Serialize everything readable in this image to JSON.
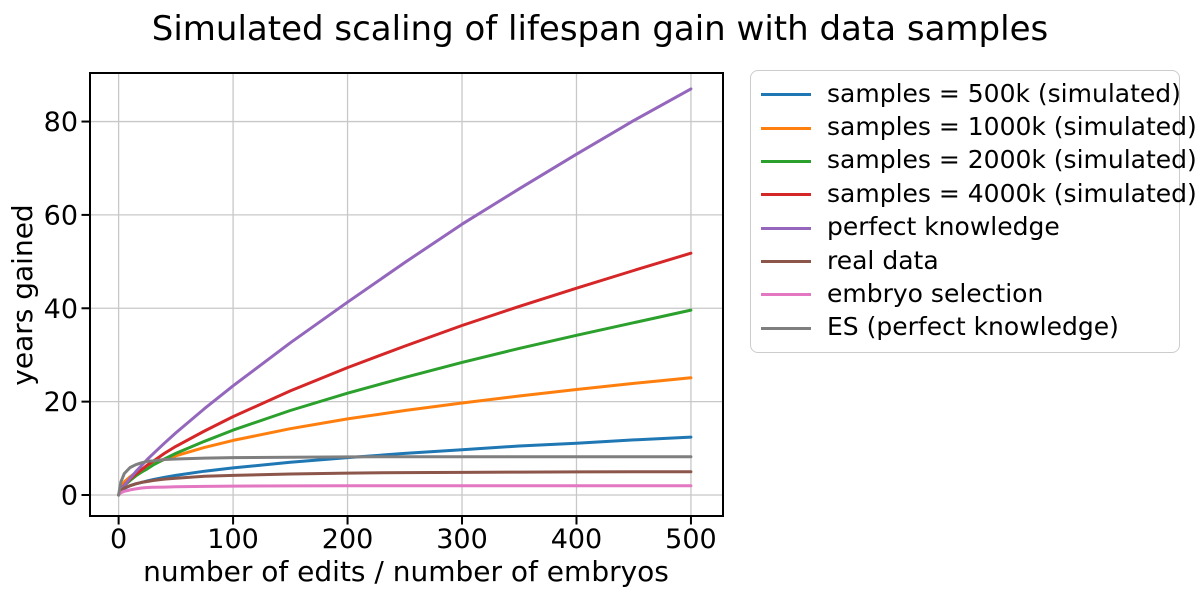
{
  "chart_data": {
    "type": "line",
    "title": "Simulated scaling of lifespan gain with data samples",
    "xlabel": "number of edits / number of embryos",
    "ylabel": "years gained",
    "xlim": [
      -25,
      528
    ],
    "ylim": [
      -4.5,
      90.4
    ],
    "xticks": [
      0,
      100,
      200,
      300,
      400,
      500
    ],
    "yticks": [
      0,
      20,
      40,
      60,
      80
    ],
    "grid": true,
    "grid_color": "#c8c8c8",
    "spine_color": "#000000",
    "legend_position": "outside-right-top",
    "x": [
      0,
      2,
      5,
      10,
      15,
      20,
      25,
      30,
      40,
      50,
      75,
      100,
      150,
      200,
      250,
      300,
      350,
      400,
      450,
      500
    ],
    "series": [
      {
        "name": "samples = 500k (simulated)",
        "color": "#1f77b4",
        "values": [
          0,
          0.9,
          1.4,
          2.0,
          2.4,
          2.7,
          3.0,
          3.3,
          3.8,
          4.2,
          5.1,
          5.8,
          7.0,
          8.0,
          8.9,
          9.7,
          10.5,
          11.1,
          11.8,
          12.4
        ]
      },
      {
        "name": "samples = 1000k (simulated)",
        "color": "#ff7f0e",
        "values": [
          0,
          1.8,
          2.8,
          3.9,
          4.8,
          5.5,
          6.1,
          6.6,
          7.6,
          8.4,
          10.2,
          11.7,
          14.2,
          16.3,
          18.1,
          19.7,
          21.2,
          22.6,
          23.9,
          25.1
        ]
      },
      {
        "name": "samples = 2000k (simulated)",
        "color": "#2ca02c",
        "values": [
          0,
          1.1,
          2.0,
          3.1,
          4.1,
          4.9,
          5.6,
          6.4,
          7.7,
          8.9,
          11.5,
          13.9,
          18.1,
          21.8,
          25.2,
          28.4,
          31.4,
          34.2,
          36.9,
          39.6
        ]
      },
      {
        "name": "samples = 4000k (simulated)",
        "color": "#d62728",
        "values": [
          0,
          1.1,
          2.1,
          3.4,
          4.5,
          5.4,
          6.4,
          7.2,
          8.9,
          10.4,
          13.7,
          16.8,
          22.3,
          27.3,
          31.9,
          36.3,
          40.4,
          44.3,
          48.1,
          51.8
        ]
      },
      {
        "name": "perfect knowledge",
        "color": "#9467bd",
        "values": [
          0,
          1.0,
          2.0,
          3.6,
          5.0,
          6.3,
          7.6,
          8.8,
          11.1,
          13.3,
          18.5,
          23.4,
          32.6,
          41.3,
          49.8,
          58.0,
          65.6,
          73.0,
          80.2,
          87.0
        ]
      },
      {
        "name": "real data",
        "color": "#8c564b",
        "values": [
          0,
          0.9,
          1.5,
          2.0,
          2.4,
          2.7,
          2.9,
          3.1,
          3.4,
          3.6,
          4.0,
          4.2,
          4.5,
          4.7,
          4.8,
          4.85,
          4.9,
          4.95,
          5.0,
          5.0
        ]
      },
      {
        "name": "embryo selection",
        "color": "#e377c2",
        "values": [
          0,
          0.5,
          0.8,
          1.1,
          1.3,
          1.5,
          1.6,
          1.65,
          1.7,
          1.75,
          1.85,
          1.9,
          1.95,
          2.0,
          2.0,
          2.0,
          2.0,
          2.0,
          2.0,
          2.0
        ]
      },
      {
        "name": "ES (perfect knowledge)",
        "color": "#7f7f7f",
        "values": [
          0,
          2.8,
          4.6,
          5.9,
          6.5,
          6.9,
          7.2,
          7.3,
          7.6,
          7.7,
          7.9,
          8.0,
          8.1,
          8.15,
          8.2,
          8.2,
          8.2,
          8.2,
          8.2,
          8.2
        ]
      }
    ]
  }
}
